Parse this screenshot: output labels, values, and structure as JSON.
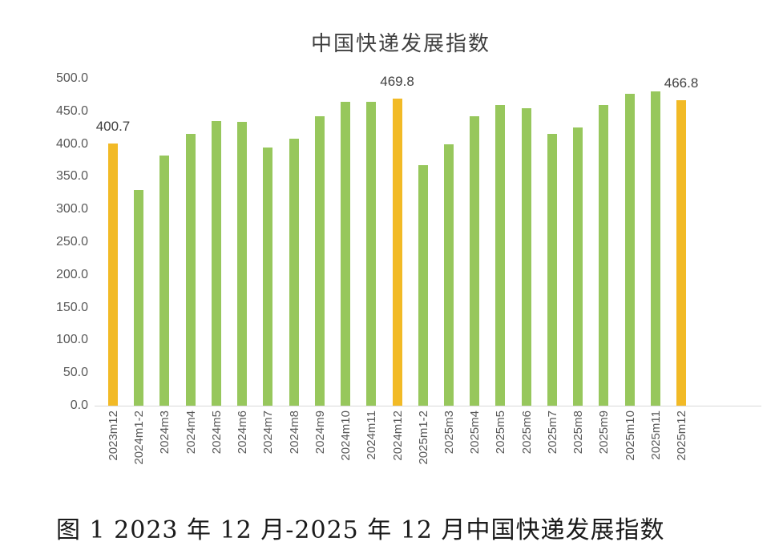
{
  "title": "中国快递发展指数",
  "caption": "图 1 2023 年 12 月-2025 年 12 月中国快递发展指数",
  "colors": {
    "bar_green": "#97C75C",
    "bar_orange": "#F2BA26",
    "axis_line": "#D9D9D9",
    "tick_text": "#595959",
    "data_label_text": "#404040"
  },
  "chart_data": {
    "type": "bar",
    "title": "中国快递发展指数",
    "xlabel": "",
    "ylabel": "",
    "ylim": [
      0,
      500
    ],
    "ytick_step": 50,
    "ytick_labels": [
      "500.0",
      "450.0",
      "400.0",
      "350.0",
      "300.0",
      "250.0",
      "200.0",
      "150.0",
      "100.0",
      "50.0",
      "0.0"
    ],
    "grid": false,
    "legend": false,
    "categories": [
      "2023m12",
      "2024m1-2",
      "2024m3",
      "2024m4",
      "2024m5",
      "2024m6",
      "2024m7",
      "2024m8",
      "2024m9",
      "2024m10",
      "2024m11",
      "2024m12",
      "2025m1-2",
      "2025m3",
      "2025m4",
      "2025m5",
      "2025m6",
      "2025m7",
      "2025m8",
      "2025m9",
      "2025m10",
      "2025m11",
      "2025m12"
    ],
    "values": [
      400.7,
      330,
      382,
      416,
      435,
      434,
      395,
      408,
      443,
      465,
      465,
      469.8,
      368,
      400,
      443,
      460,
      455,
      415,
      425,
      460,
      477,
      480,
      466.8
    ],
    "highlight_indices": [
      0,
      11,
      22
    ],
    "data_labels": [
      {
        "index": 0,
        "text": "400.7"
      },
      {
        "index": 11,
        "text": "469.8"
      },
      {
        "index": 22,
        "text": "466.8"
      }
    ]
  }
}
